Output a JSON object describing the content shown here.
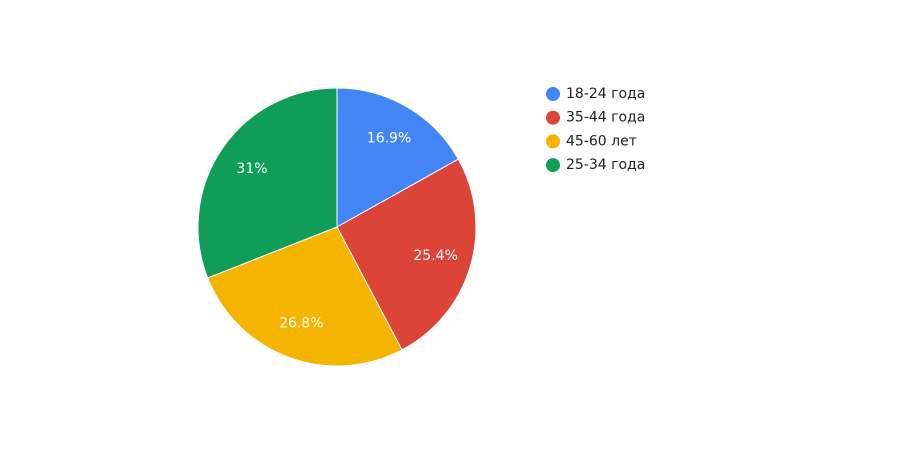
{
  "chart_data": {
    "type": "pie",
    "categories": [
      "18-24 года",
      "35-44 года",
      "45-60 лет",
      "25-34 года"
    ],
    "values": [
      16.9,
      25.4,
      26.8,
      31
    ],
    "value_labels": [
      "16.9%",
      "25.4%",
      "26.8%",
      "31%"
    ],
    "colors": [
      "#4285f4",
      "#db4437",
      "#f4b400",
      "#0f9d58"
    ],
    "legend": "right"
  }
}
